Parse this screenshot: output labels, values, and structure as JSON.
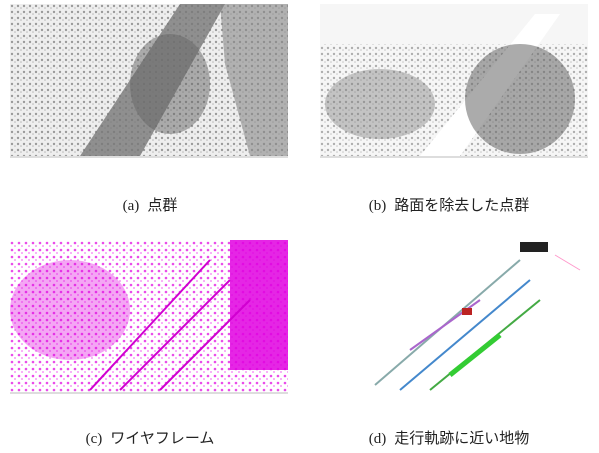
{
  "figure": {
    "panels": [
      {
        "label": "(a)",
        "caption": "点群"
      },
      {
        "label": "(b)",
        "caption": "路面を除去した点群"
      },
      {
        "label": "(c)",
        "caption": "ワイヤフレーム"
      },
      {
        "label": "(d)",
        "caption": "走行軌跡に近い地物"
      }
    ]
  }
}
